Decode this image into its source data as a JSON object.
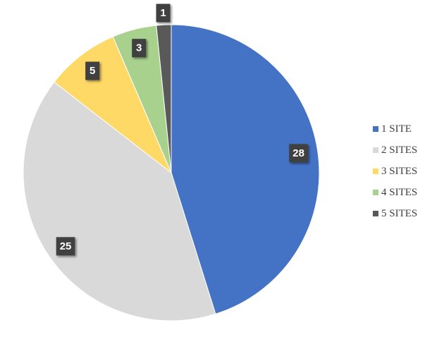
{
  "chart_data": {
    "type": "pie",
    "categories": [
      "1 SITE",
      "2 SITES",
      "3 SITES",
      "4 SITES",
      "5 SITES"
    ],
    "values": [
      28,
      25,
      5,
      3,
      1
    ],
    "colors": [
      "#4472c4",
      "#d9d9d9",
      "#ffd966",
      "#a9d18e",
      "#595959"
    ],
    "legend": "right"
  }
}
